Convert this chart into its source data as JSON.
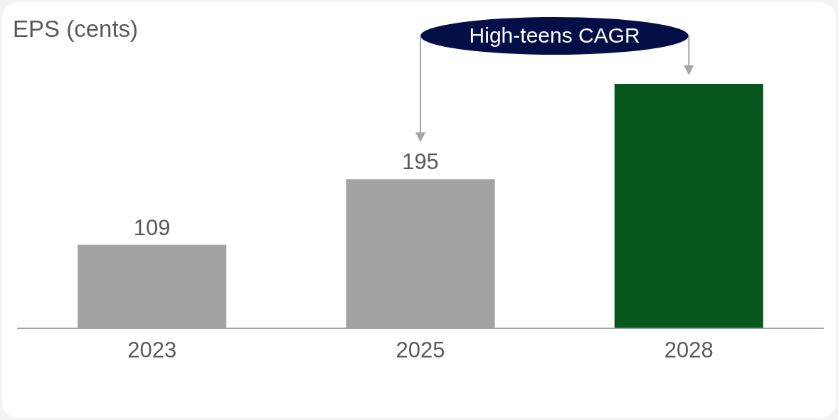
{
  "chart_data": {
    "type": "bar",
    "title": "EPS (cents)",
    "categories": [
      "2023",
      "2025",
      "2028"
    ],
    "values": [
      109,
      195,
      320
    ],
    "colors": [
      "#a2a2a2",
      "#a2a2a2",
      "#06561e"
    ],
    "value_labels": [
      "109",
      "195",
      null
    ],
    "tick_labels": "x",
    "annotations": [
      "High-teens CAGR"
    ]
  }
}
